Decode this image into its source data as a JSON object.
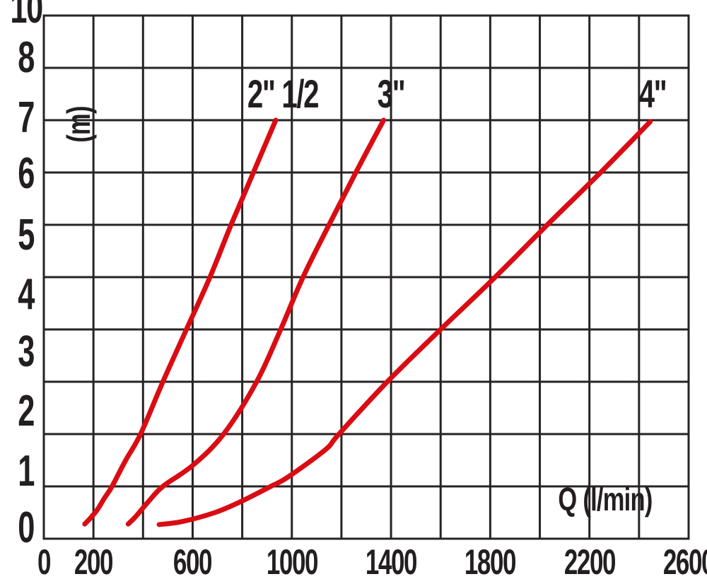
{
  "chart_data": {
    "type": "line",
    "title": "",
    "xlabel": "Q (l/min)",
    "ylabel": "(m)",
    "x_unit": "l/min",
    "y_unit": "m",
    "xlim": [
      0,
      2600
    ],
    "ylim": [
      0,
      10
    ],
    "x_gridline_step": 200,
    "y_gridline_step": 1,
    "grid": true,
    "x_tick_labels": [
      "0",
      "200",
      "600",
      "1000",
      "1400",
      "1800",
      "2200",
      "2600"
    ],
    "x_tick_values": [
      0,
      200,
      600,
      1000,
      1400,
      1800,
      2200,
      2600
    ],
    "y_tick_labels": [
      "10",
      "8",
      "7",
      "6",
      "5",
      "4",
      "3",
      "2",
      "1",
      "0"
    ],
    "notes": "Head loss vs flow chart. Y gridlines every 1 m (0-10); the '9' tick label is not printed and printed y labels drift slightly from their gridlines. Curve labels sit above the top end of each curve.",
    "legend_position": "labels-above-curves",
    "series": [
      {
        "name": "2\" 1/2",
        "points": [
          [
            165,
            0.28
          ],
          [
            185,
            0.38
          ],
          [
            215,
            0.55
          ],
          [
            245,
            0.78
          ],
          [
            275,
            1.0
          ],
          [
            330,
            1.5
          ],
          [
            390,
            2.0
          ],
          [
            480,
            3.0
          ],
          [
            575,
            4.0
          ],
          [
            670,
            5.0
          ],
          [
            755,
            6.0
          ],
          [
            845,
            7.0
          ],
          [
            935,
            8.0
          ]
        ]
      },
      {
        "name": "3\"",
        "points": [
          [
            340,
            0.28
          ],
          [
            370,
            0.42
          ],
          [
            420,
            0.7
          ],
          [
            480,
            1.0
          ],
          [
            600,
            1.4
          ],
          [
            725,
            2.0
          ],
          [
            858,
            3.0
          ],
          [
            955,
            4.0
          ],
          [
            1045,
            5.0
          ],
          [
            1150,
            6.0
          ],
          [
            1258,
            7.0
          ],
          [
            1370,
            8.0
          ]
        ]
      },
      {
        "name": "4\"",
        "points": [
          [
            465,
            0.27
          ],
          [
            560,
            0.33
          ],
          [
            690,
            0.5
          ],
          [
            790,
            0.7
          ],
          [
            915,
            1.0
          ],
          [
            985,
            1.18
          ],
          [
            1135,
            1.7
          ],
          [
            1190,
            2.0
          ],
          [
            1385,
            3.0
          ],
          [
            1600,
            4.0
          ],
          [
            1820,
            5.0
          ],
          [
            2030,
            6.0
          ],
          [
            2245,
            7.0
          ],
          [
            2445,
            7.97
          ]
        ]
      }
    ]
  },
  "colors": {
    "curve": "#da0c13",
    "grid": "#272325",
    "text": "#231f20",
    "background": "#ffffff"
  }
}
